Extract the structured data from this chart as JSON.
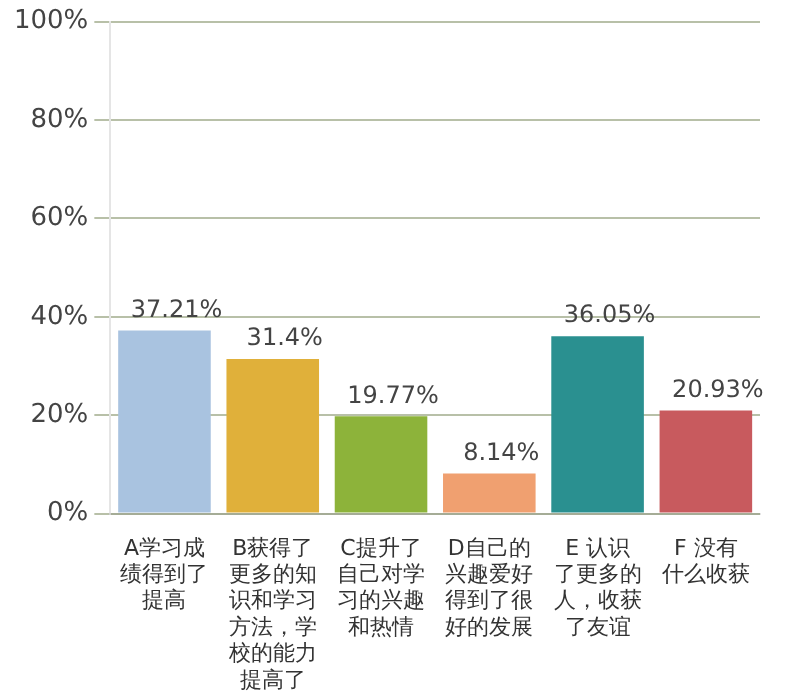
{
  "chart_data": {
    "type": "bar",
    "categories": [
      "A学习成绩得到了提高",
      "B获得了更多的知识和学习方法，学校的能力提高了",
      "C提升了自己对学习的兴趣和热情",
      "D自己的兴趣爱好得到了很好的发展",
      "E 认识了更多的人，收获了友谊",
      "F 没有什么收获"
    ],
    "values": [
      37.21,
      31.4,
      19.77,
      8.14,
      36.05,
      20.93
    ],
    "colors": [
      "#a9c3e0",
      "#e0b03a",
      "#8db33a",
      "#f0a070",
      "#2a9090",
      "#c85a5e"
    ],
    "value_labels": [
      "37.21%",
      "31.4%",
      "19.77%",
      "8.14%",
      "36.05%",
      "20.93%"
    ],
    "ylim": [
      0,
      100
    ],
    "yticks": [
      {
        "value": 0,
        "label": "0%"
      },
      {
        "value": 20,
        "label": "20%"
      },
      {
        "value": 40,
        "label": "40%"
      },
      {
        "value": 60,
        "label": "60%"
      },
      {
        "value": 80,
        "label": "80%"
      },
      {
        "value": 100,
        "label": "100%"
      }
    ],
    "grid": "y",
    "legend": false
  }
}
